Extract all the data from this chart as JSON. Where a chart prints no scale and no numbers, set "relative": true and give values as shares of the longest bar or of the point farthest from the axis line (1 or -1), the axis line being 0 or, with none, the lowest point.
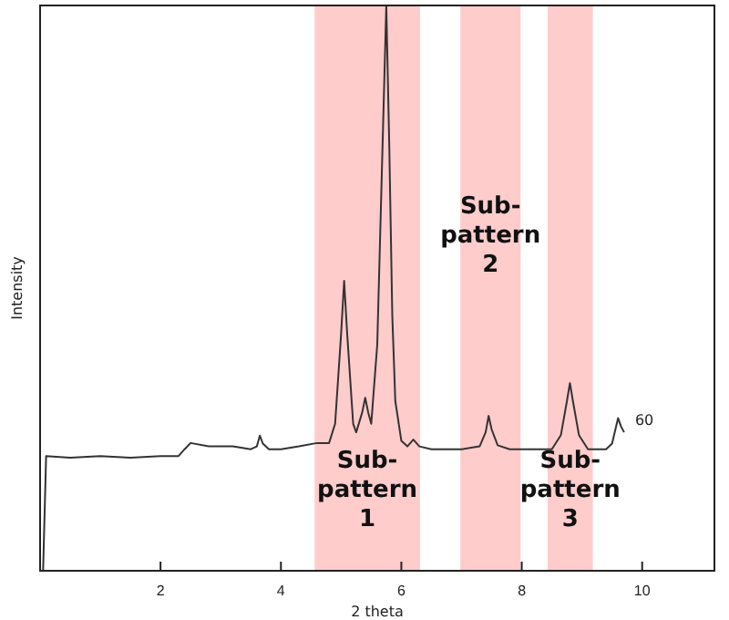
{
  "chart_data": {
    "type": "line",
    "xlabel": "2 theta",
    "ylabel": "Intensity",
    "relative": true,
    "xlim": [
      0,
      11.2
    ],
    "xticks": [
      2,
      4,
      6,
      8,
      10
    ],
    "series": [
      {
        "color": "#333333",
        "x": [
          0.05,
          0.1,
          0.5,
          1.0,
          1.5,
          2.0,
          2.3,
          2.4,
          2.5,
          2.8,
          3.2,
          3.5,
          3.6,
          3.65,
          3.7,
          3.8,
          4.0,
          4.3,
          4.6,
          4.8,
          4.9,
          5.0,
          5.05,
          5.1,
          5.2,
          5.25,
          5.35,
          5.4,
          5.45,
          5.5,
          5.6,
          5.7,
          5.75,
          5.8,
          5.85,
          5.9,
          6.0,
          6.1,
          6.2,
          6.3,
          6.5,
          7.0,
          7.3,
          7.4,
          7.45,
          7.5,
          7.6,
          7.8,
          8.2,
          8.5,
          8.65,
          8.75,
          8.8,
          8.85,
          8.95,
          9.1,
          9.4,
          9.5,
          9.6,
          9.65,
          9.7
        ],
        "values": [
          0.0,
          0.203,
          0.2,
          0.203,
          0.2,
          0.203,
          0.203,
          0.215,
          0.226,
          0.22,
          0.22,
          0.215,
          0.22,
          0.239,
          0.225,
          0.215,
          0.215,
          0.22,
          0.226,
          0.226,
          0.26,
          0.42,
          0.513,
          0.42,
          0.26,
          0.245,
          0.28,
          0.306,
          0.28,
          0.26,
          0.4,
          0.8,
          1.0,
          0.75,
          0.45,
          0.3,
          0.23,
          0.22,
          0.232,
          0.22,
          0.215,
          0.215,
          0.22,
          0.245,
          0.274,
          0.25,
          0.222,
          0.215,
          0.215,
          0.215,
          0.24,
          0.3,
          0.332,
          0.3,
          0.24,
          0.215,
          0.215,
          0.225,
          0.27,
          0.255,
          0.245
        ]
      }
    ],
    "bands": [
      {
        "axis": "x",
        "from": 4.56,
        "to": 6.31,
        "label": "Sub-pattern 1",
        "color": "#ffcccc"
      },
      {
        "axis": "x",
        "from": 6.98,
        "to": 7.98,
        "label": "Sub-pattern 2",
        "color": "#ffcccc"
      },
      {
        "axis": "x",
        "from": 8.43,
        "to": 9.18,
        "label": "Sub-pattern 3",
        "color": "#ffcccc"
      }
    ],
    "annotations": [
      {
        "text": "60",
        "x": 9.7,
        "y": 0.245
      }
    ]
  }
}
